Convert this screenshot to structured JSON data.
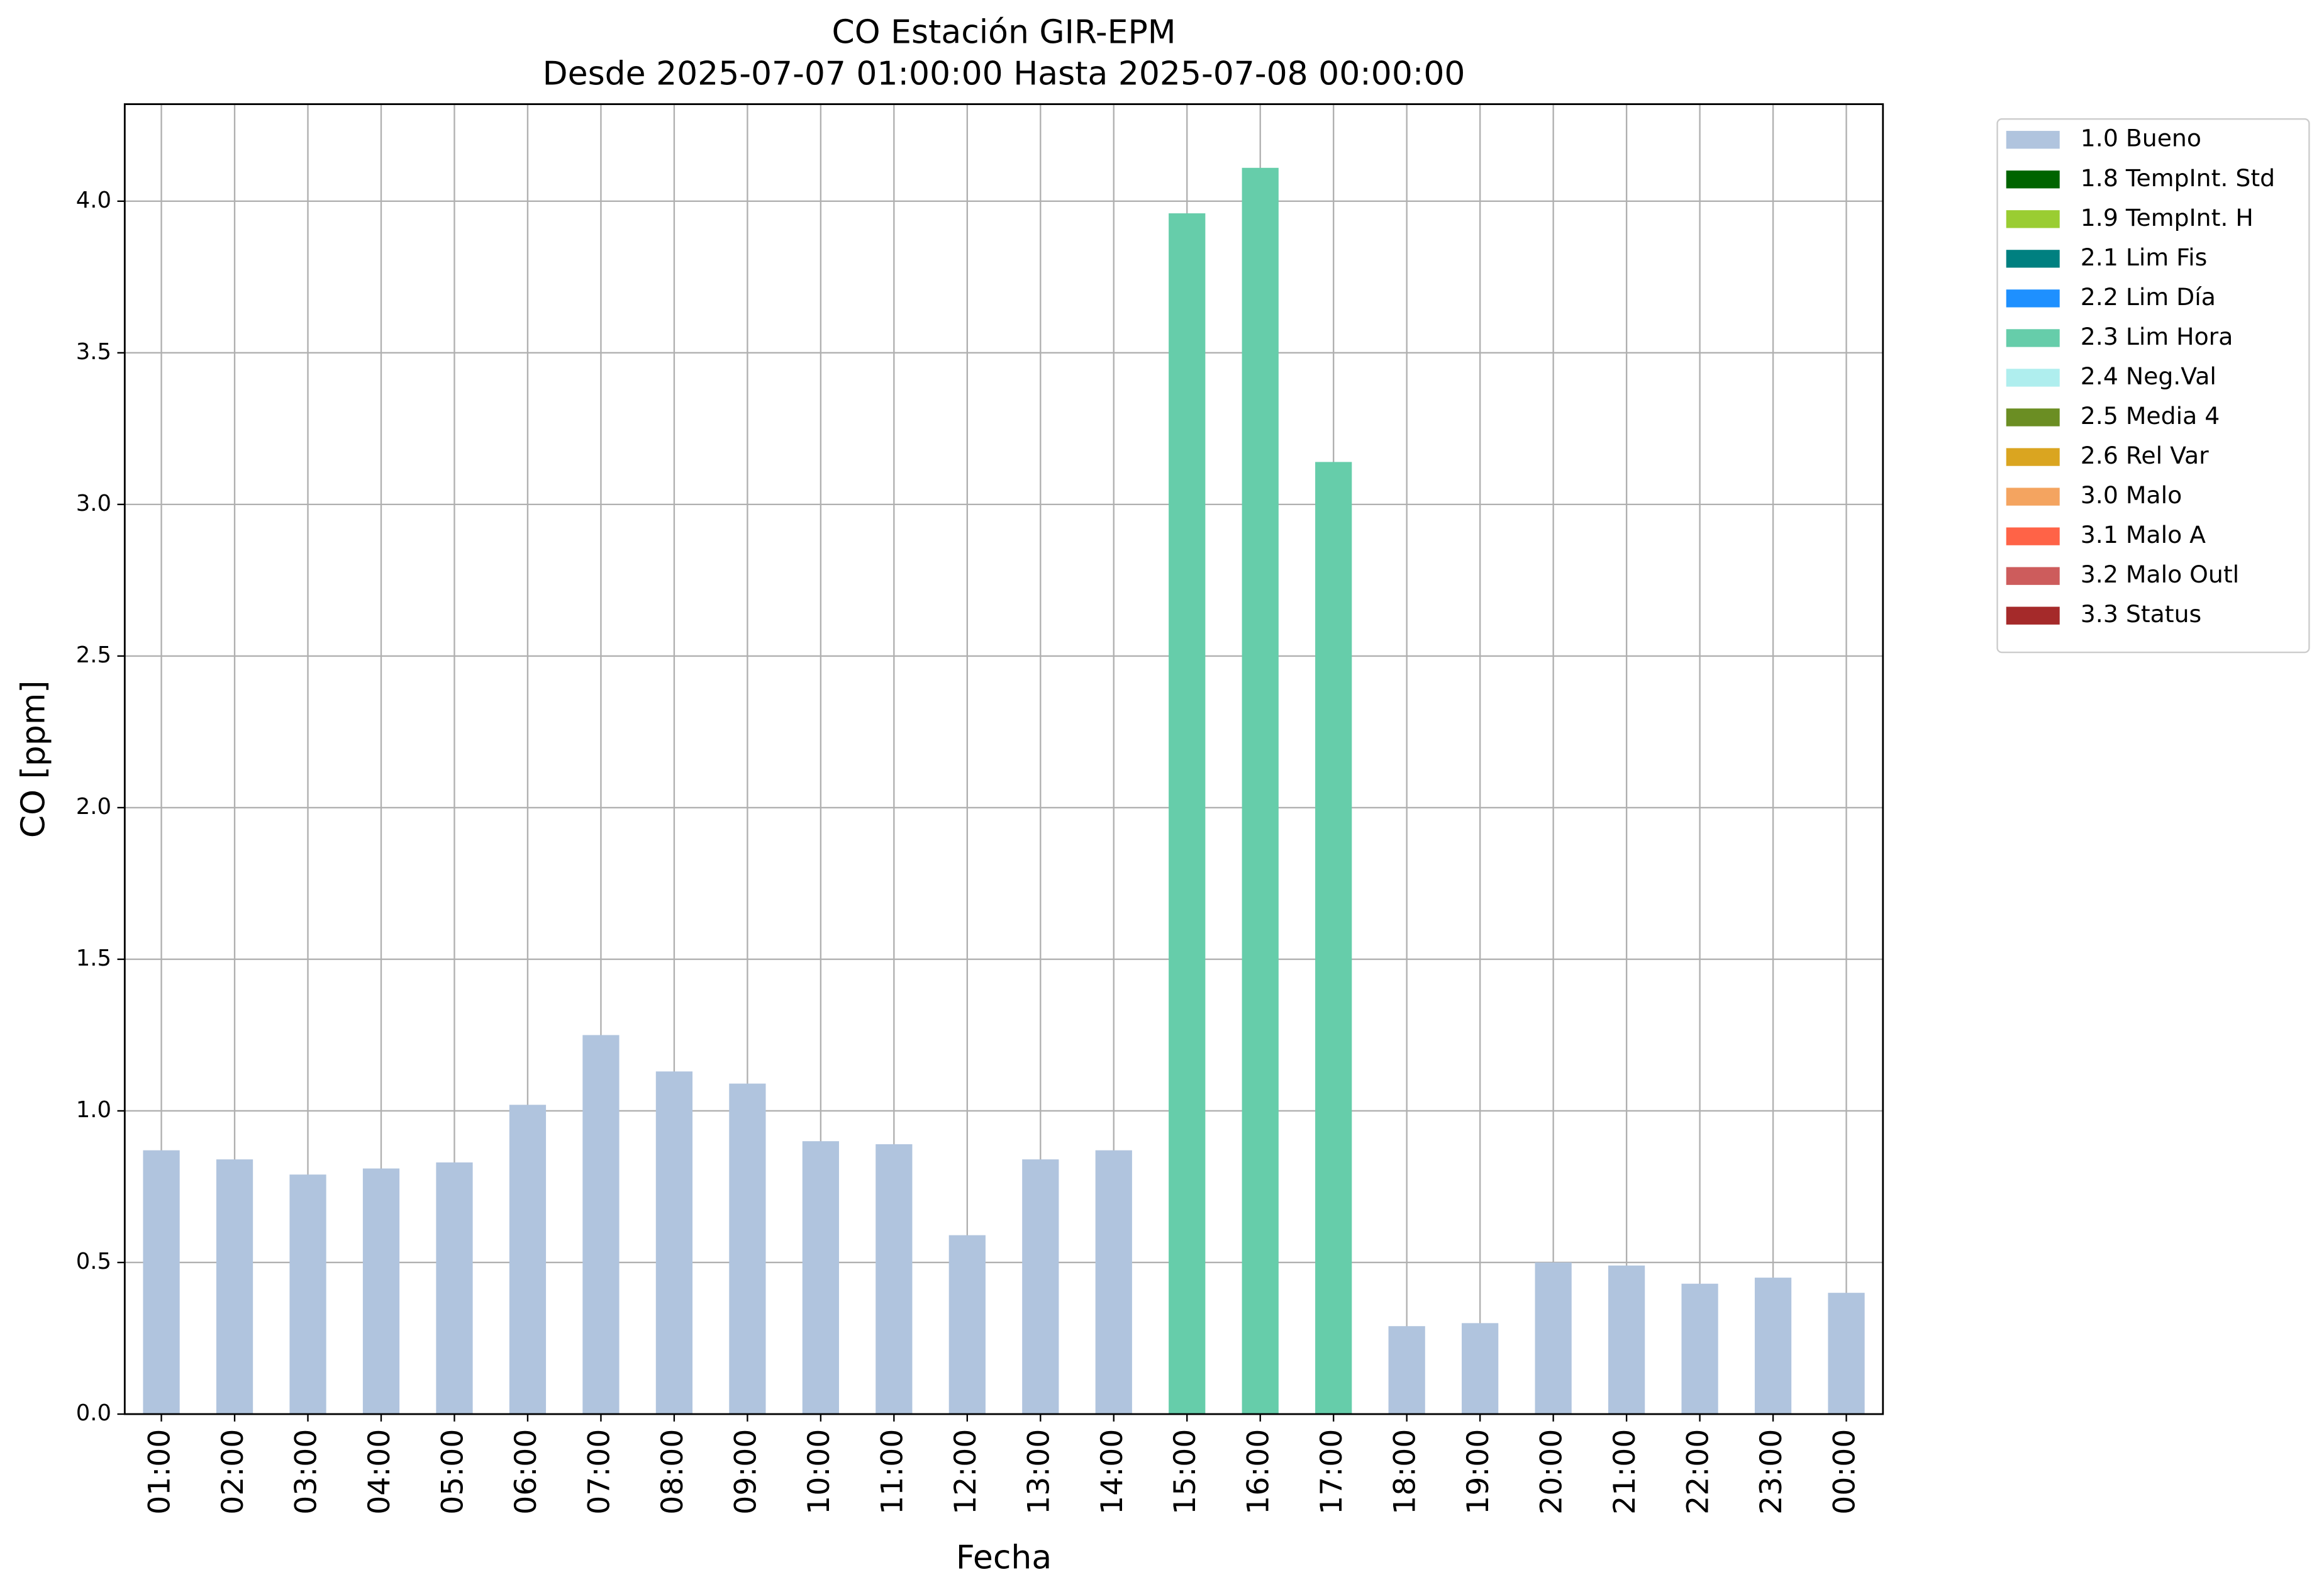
{
  "chart_data": {
    "type": "bar",
    "stacked": true,
    "title": "CO Estación GIR-EPM",
    "subtitle": "Desde 2025-07-07 01:00:00 Hasta 2025-07-08 00:00:00",
    "x_label": "Fecha",
    "y_label": "CO [ppm]",
    "categories": [
      "01:00",
      "02:00",
      "03:00",
      "04:00",
      "05:00",
      "06:00",
      "07:00",
      "08:00",
      "09:00",
      "10:00",
      "11:00",
      "12:00",
      "13:00",
      "14:00",
      "15:00",
      "16:00",
      "17:00",
      "18:00",
      "19:00",
      "20:00",
      "21:00",
      "22:00",
      "23:00",
      "00:00"
    ],
    "series": [
      {
        "name": "1.0 Bueno",
        "color": "#b0c4de",
        "values": [
          0.87,
          0.84,
          0.79,
          0.81,
          0.83,
          1.02,
          1.25,
          1.13,
          1.09,
          0.9,
          0.89,
          0.59,
          0.84,
          0.87,
          null,
          null,
          null,
          0.29,
          0.3,
          0.5,
          0.49,
          0.43,
          0.45,
          0.4
        ]
      },
      {
        "name": "1.8 TempInt. Std",
        "color": "#006400",
        "values": [
          null,
          null,
          null,
          null,
          null,
          null,
          null,
          null,
          null,
          null,
          null,
          null,
          null,
          null,
          null,
          null,
          null,
          null,
          null,
          null,
          null,
          null,
          null,
          null
        ]
      },
      {
        "name": "1.9 TempInt. H",
        "color": "#9acd32",
        "values": [
          null,
          null,
          null,
          null,
          null,
          null,
          null,
          null,
          null,
          null,
          null,
          null,
          null,
          null,
          null,
          null,
          null,
          null,
          null,
          null,
          null,
          null,
          null,
          null
        ]
      },
      {
        "name": "2.1 Lim Fis",
        "color": "#008080",
        "values": [
          null,
          null,
          null,
          null,
          null,
          null,
          null,
          null,
          null,
          null,
          null,
          null,
          null,
          null,
          null,
          null,
          null,
          null,
          null,
          null,
          null,
          null,
          null,
          null
        ]
      },
      {
        "name": "2.2 Lim Día",
        "color": "#1e90ff",
        "values": [
          null,
          null,
          null,
          null,
          null,
          null,
          null,
          null,
          null,
          null,
          null,
          null,
          null,
          null,
          null,
          null,
          null,
          null,
          null,
          null,
          null,
          null,
          null,
          null
        ]
      },
      {
        "name": "2.3 Lim Hora",
        "color": "#66cdaa",
        "values": [
          null,
          null,
          null,
          null,
          null,
          null,
          null,
          null,
          null,
          null,
          null,
          null,
          null,
          null,
          3.96,
          4.11,
          3.14,
          null,
          null,
          null,
          null,
          null,
          null,
          null
        ]
      },
      {
        "name": "2.4 Neg.Val",
        "color": "#afeeee",
        "values": [
          null,
          null,
          null,
          null,
          null,
          null,
          null,
          null,
          null,
          null,
          null,
          null,
          null,
          null,
          null,
          null,
          null,
          null,
          null,
          null,
          null,
          null,
          null,
          null
        ]
      },
      {
        "name": "2.5 Media 4",
        "color": "#6b8e23",
        "values": [
          null,
          null,
          null,
          null,
          null,
          null,
          null,
          null,
          null,
          null,
          null,
          null,
          null,
          null,
          null,
          null,
          null,
          null,
          null,
          null,
          null,
          null,
          null,
          null
        ]
      },
      {
        "name": "2.6 Rel Var",
        "color": "#daa520",
        "values": [
          null,
          null,
          null,
          null,
          null,
          null,
          null,
          null,
          null,
          null,
          null,
          null,
          null,
          null,
          null,
          null,
          null,
          null,
          null,
          null,
          null,
          null,
          null,
          null
        ]
      },
      {
        "name": "3.0 Malo",
        "color": "#f4a460",
        "values": [
          null,
          null,
          null,
          null,
          null,
          null,
          null,
          null,
          null,
          null,
          null,
          null,
          null,
          null,
          null,
          null,
          null,
          null,
          null,
          null,
          null,
          null,
          null,
          null
        ]
      },
      {
        "name": "3.1 Malo A",
        "color": "#ff6347",
        "values": [
          null,
          null,
          null,
          null,
          null,
          null,
          null,
          null,
          null,
          null,
          null,
          null,
          null,
          null,
          null,
          null,
          null,
          null,
          null,
          null,
          null,
          null,
          null,
          null
        ]
      },
      {
        "name": "3.2 Malo Outl",
        "color": "#cd5c5c",
        "values": [
          null,
          null,
          null,
          null,
          null,
          null,
          null,
          null,
          null,
          null,
          null,
          null,
          null,
          null,
          null,
          null,
          null,
          null,
          null,
          null,
          null,
          null,
          null,
          null
        ]
      },
      {
        "name": "3.3 Status",
        "color": "#a52a2a",
        "values": [
          null,
          null,
          null,
          null,
          null,
          null,
          null,
          null,
          null,
          null,
          null,
          null,
          null,
          null,
          null,
          null,
          null,
          null,
          null,
          null,
          null,
          null,
          null,
          null
        ]
      }
    ],
    "ylim": [
      0,
      4.32
    ],
    "yticks": [
      {
        "value": 0,
        "label": "0.0"
      },
      0.5,
      {
        "value": 1,
        "label": "1.0"
      },
      1.5,
      {
        "value": 2,
        "label": "2.0"
      },
      2.5,
      {
        "value": 3,
        "label": "3.0"
      },
      3.5,
      {
        "value": 4,
        "label": "4.0"
      }
    ],
    "grid": true,
    "legend": "outside-upper-right"
  }
}
